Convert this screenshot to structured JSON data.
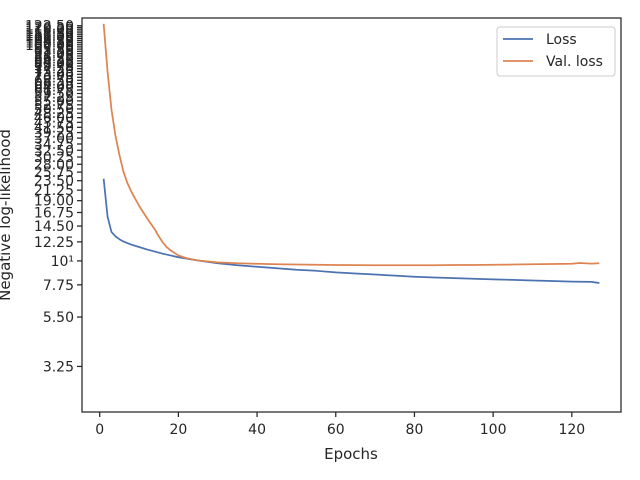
{
  "chart_data": {
    "type": "line",
    "xlabel": "Epochs",
    "ylabel": "Negative log-likelihood",
    "xlim": [
      -4.5,
      132.5
    ],
    "ylim": [
      2.0,
      133.0
    ],
    "yscale": "log",
    "grid": false,
    "legend_position": "top-right",
    "x_ticks": [
      0,
      20,
      40,
      60,
      80,
      100,
      120
    ],
    "x_tick_labels": [
      "0",
      "20",
      "40",
      "60",
      "80",
      "100",
      "120"
    ],
    "y_ticks": [
      3.25,
      5.5,
      7.75,
      10,
      12.25,
      14.5,
      16.75,
      19.0,
      21.25,
      23.5,
      25.75,
      28.0,
      30.25,
      32.5,
      34.75,
      37.0,
      39.25,
      41.5,
      43.75,
      46.0,
      48.25,
      50.5,
      52.75,
      55.0,
      57.25,
      59.5,
      61.75,
      64.0,
      66.25,
      68.5,
      70.75,
      73.0,
      75.25,
      77.5,
      79.75,
      82.0,
      84.25,
      86.5,
      88.75,
      91.0,
      93.25,
      95.5,
      97.75,
      100.0,
      102.25,
      104.5,
      106.75,
      109.0,
      111.25,
      113.5,
      115.75,
      118.0,
      120.25,
      122.5
    ],
    "y_tick_labels": [
      "3.25",
      "5.50",
      "7.75",
      "10¹",
      "12.25",
      "14.50",
      "16.75",
      "19.00",
      "21.25",
      "23.50",
      "25.75",
      "28.00",
      "30.25",
      "32.50",
      "34.75",
      "37.00",
      "39.25",
      "41.50",
      "43.75",
      "46.00",
      "48.25",
      "50.50",
      "52.75",
      "55.00",
      "57.25",
      "59.50",
      "61.75",
      "64.00",
      "66.25",
      "68.50",
      "70.75",
      "73.00",
      "75.25",
      "77.50",
      "79.75",
      "82.00",
      "84.25",
      "86.50",
      "88.75",
      "91.00",
      "93.25",
      "95.50",
      "97.75",
      "100.00",
      "102.25",
      "104.50",
      "106.75",
      "109.00",
      "111.25",
      "113.50",
      "115.75",
      "118.00",
      "120.25",
      "122.50"
    ],
    "series": [
      {
        "name": "Loss",
        "color": "#4c72b0",
        "x": [
          1,
          2,
          3,
          4,
          5,
          6,
          7,
          8,
          10,
          12,
          14,
          16,
          18,
          20,
          25,
          30,
          35,
          40,
          45,
          50,
          55,
          60,
          65,
          70,
          75,
          80,
          85,
          90,
          95,
          100,
          105,
          110,
          115,
          120,
          125,
          127
        ],
        "y": [
          24.0,
          16.0,
          13.6,
          13.0,
          12.6,
          12.3,
          12.1,
          11.9,
          11.6,
          11.3,
          11.05,
          10.8,
          10.6,
          10.4,
          10.05,
          9.75,
          9.55,
          9.4,
          9.25,
          9.1,
          9.0,
          8.85,
          8.75,
          8.65,
          8.55,
          8.45,
          8.38,
          8.33,
          8.27,
          8.22,
          8.17,
          8.12,
          8.07,
          8.02,
          8.0,
          7.9
        ]
      },
      {
        "name": "Val. loss",
        "color": "#dd8452",
        "x": [
          1,
          2,
          3,
          4,
          5,
          6,
          7,
          8,
          10,
          12,
          14,
          15,
          16,
          17,
          18,
          20,
          22,
          25,
          30,
          35,
          40,
          45,
          50,
          55,
          60,
          65,
          70,
          75,
          80,
          85,
          90,
          95,
          100,
          105,
          110,
          115,
          120,
          122,
          125,
          127
        ],
        "y": [
          125.0,
          75.0,
          50.0,
          38.0,
          31.0,
          26.0,
          23.0,
          21.0,
          18.0,
          15.8,
          14.0,
          13.0,
          12.2,
          11.6,
          11.2,
          10.6,
          10.3,
          10.05,
          9.85,
          9.75,
          9.7,
          9.65,
          9.62,
          9.6,
          9.58,
          9.56,
          9.55,
          9.55,
          9.55,
          9.55,
          9.57,
          9.58,
          9.6,
          9.62,
          9.65,
          9.68,
          9.7,
          9.78,
          9.72,
          9.75
        ]
      }
    ]
  }
}
